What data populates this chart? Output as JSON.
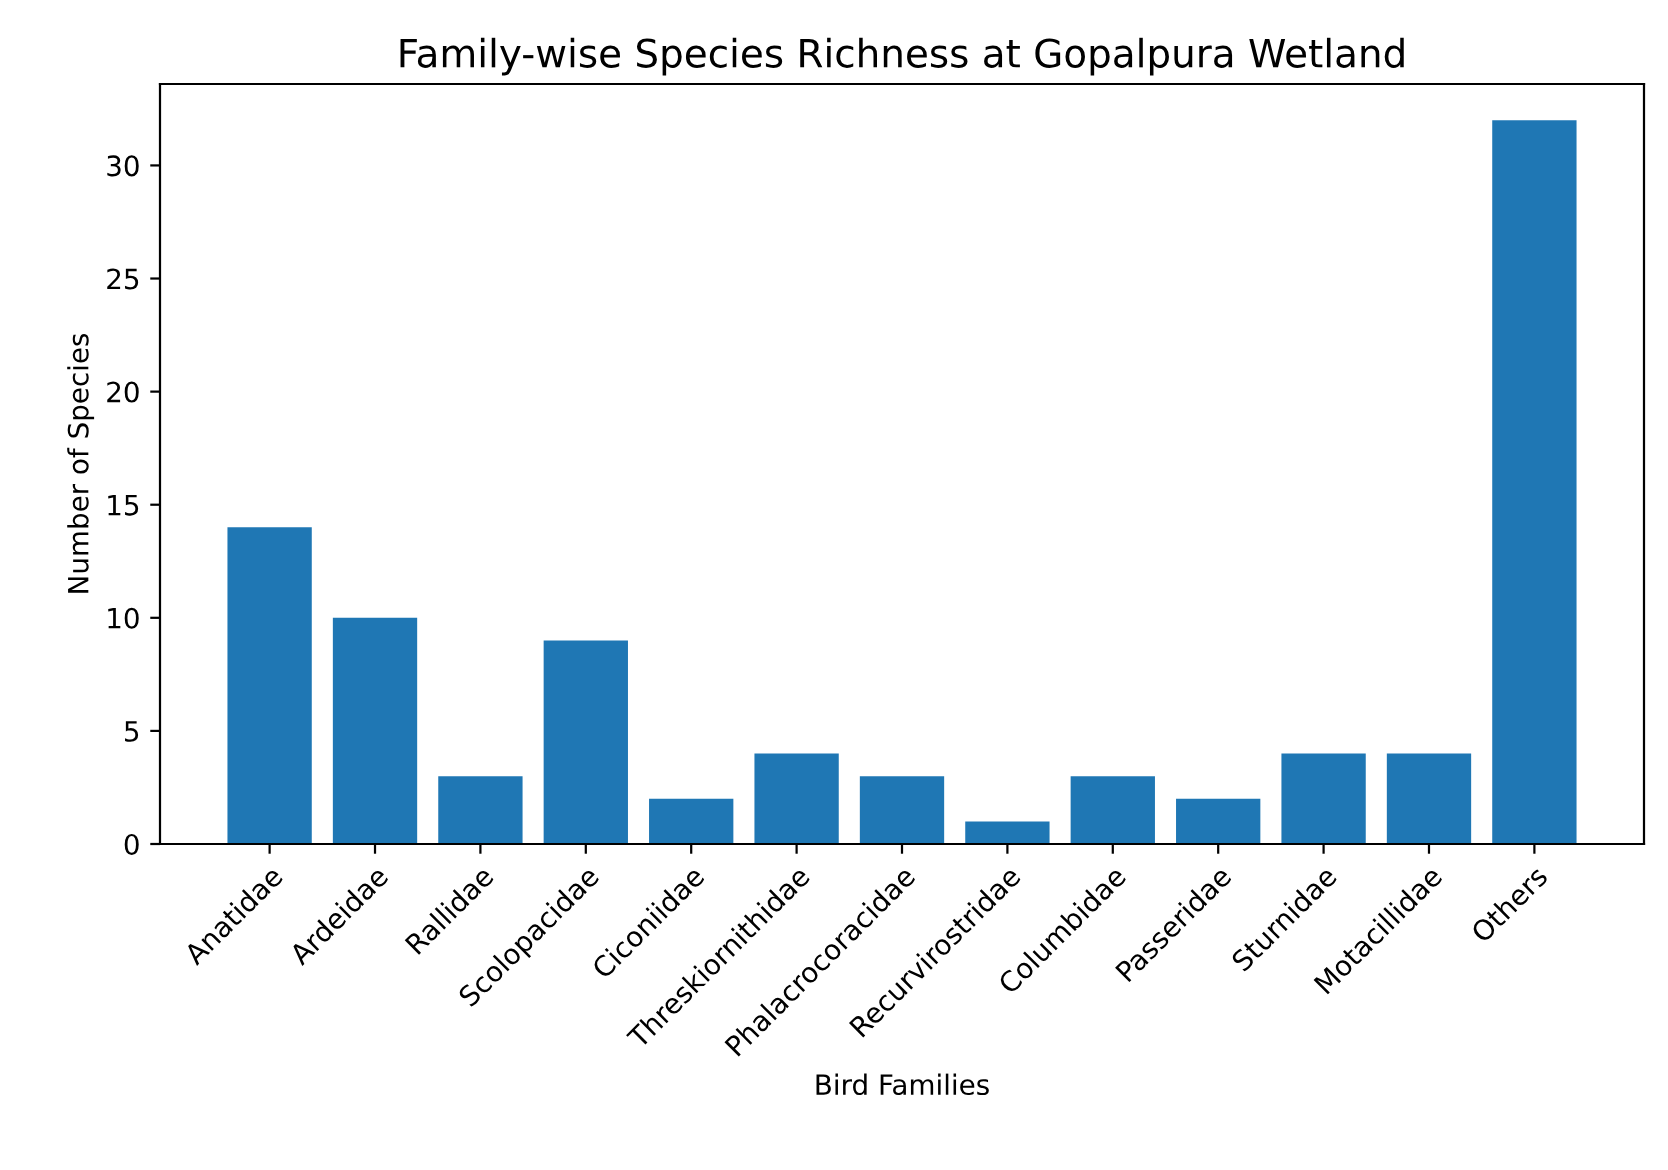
{
  "chart_data": {
    "type": "bar",
    "title": "Family-wise Species Richness at Gopalpura Wetland",
    "xlabel": "Bird Families",
    "ylabel": "Number of Species",
    "categories": [
      "Anatidae",
      "Ardeidae",
      "Rallidae",
      "Scolopacidae",
      "Ciconiidae",
      "Threskiornithidae",
      "Phalacrocoracidae",
      "Recurvirostridae",
      "Columbidae",
      "Passeridae",
      "Sturnidae",
      "Motacillidae",
      "Others"
    ],
    "values": [
      14,
      10,
      3,
      9,
      2,
      4,
      3,
      1,
      3,
      2,
      4,
      4,
      32
    ],
    "color": "#1f77b4",
    "ylim": [
      0,
      33.6
    ],
    "yticks": [
      0,
      5,
      10,
      15,
      20,
      25,
      30
    ],
    "grid": false
  }
}
